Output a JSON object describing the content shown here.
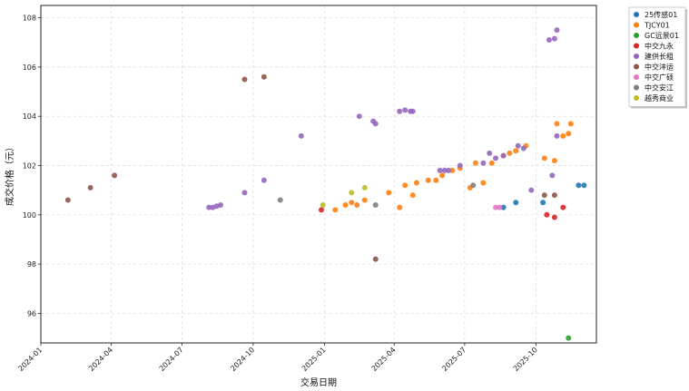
{
  "chart_data": {
    "type": "scatter",
    "title": "",
    "xlabel": "交易日期",
    "ylabel": "成交价格（元）",
    "x_axis_type": "date",
    "xlim": [
      "2024-01-01",
      "2025-12-18"
    ],
    "ylim": [
      94.8,
      108.5
    ],
    "x_ticks": [
      "2024-01",
      "2024-04",
      "2024-07",
      "2024-10",
      "2025-01",
      "2025-04",
      "2025-07",
      "2025-10"
    ],
    "y_ticks": [
      96,
      98,
      100,
      102,
      104,
      106,
      108
    ],
    "grid": true,
    "legend_position": "outside-top-right",
    "series": [
      {
        "name": "25传感01",
        "color": "#1f77b4",
        "points": [
          {
            "x": "2025-08-20",
            "y": 100.3
          },
          {
            "x": "2025-09-05",
            "y": 100.5
          },
          {
            "x": "2025-10-10",
            "y": 100.5
          },
          {
            "x": "2025-11-25",
            "y": 101.2
          },
          {
            "x": "2025-12-02",
            "y": 101.2
          }
        ]
      },
      {
        "name": "TJCY01",
        "color": "#ff7f0e",
        "points": [
          {
            "x": "2025-01-15",
            "y": 100.2
          },
          {
            "x": "2025-01-28",
            "y": 100.4
          },
          {
            "x": "2025-02-05",
            "y": 100.5
          },
          {
            "x": "2025-02-12",
            "y": 100.4
          },
          {
            "x": "2025-02-22",
            "y": 100.6
          },
          {
            "x": "2025-03-25",
            "y": 100.9
          },
          {
            "x": "2025-04-08",
            "y": 100.3
          },
          {
            "x": "2025-04-15",
            "y": 101.2
          },
          {
            "x": "2025-04-25",
            "y": 100.8
          },
          {
            "x": "2025-04-30",
            "y": 101.3
          },
          {
            "x": "2025-05-15",
            "y": 101.4
          },
          {
            "x": "2025-05-25",
            "y": 101.4
          },
          {
            "x": "2025-06-02",
            "y": 101.6
          },
          {
            "x": "2025-06-15",
            "y": 101.8
          },
          {
            "x": "2025-06-25",
            "y": 101.9
          },
          {
            "x": "2025-07-08",
            "y": 101.1
          },
          {
            "x": "2025-07-15",
            "y": 102.1
          },
          {
            "x": "2025-07-25",
            "y": 101.3
          },
          {
            "x": "2025-08-05",
            "y": 102.1
          },
          {
            "x": "2025-08-20",
            "y": 102.4
          },
          {
            "x": "2025-08-28",
            "y": 102.5
          },
          {
            "x": "2025-09-05",
            "y": 102.6
          },
          {
            "x": "2025-09-18",
            "y": 102.8
          },
          {
            "x": "2025-10-12",
            "y": 102.3
          },
          {
            "x": "2025-10-25",
            "y": 102.2
          },
          {
            "x": "2025-10-28",
            "y": 103.7
          },
          {
            "x": "2025-11-05",
            "y": 103.2
          },
          {
            "x": "2025-11-12",
            "y": 103.3
          },
          {
            "x": "2025-11-15",
            "y": 103.7
          }
        ]
      },
      {
        "name": "GC远景01",
        "color": "#2ca02c",
        "points": [
          {
            "x": "2025-11-12",
            "y": 95.0
          }
        ]
      },
      {
        "name": "中交九永",
        "color": "#d62728",
        "points": [
          {
            "x": "2024-12-28",
            "y": 100.2
          },
          {
            "x": "2025-10-15",
            "y": 100.0
          },
          {
            "x": "2025-10-25",
            "y": 99.9
          },
          {
            "x": "2025-11-05",
            "y": 100.3
          }
        ]
      },
      {
        "name": "建供长租",
        "color": "#9467bd",
        "points": [
          {
            "x": "2024-08-05",
            "y": 100.3
          },
          {
            "x": "2024-08-10",
            "y": 100.3
          },
          {
            "x": "2024-08-15",
            "y": 100.35
          },
          {
            "x": "2024-08-20",
            "y": 100.4
          },
          {
            "x": "2024-09-20",
            "y": 100.9
          },
          {
            "x": "2024-10-15",
            "y": 101.4
          },
          {
            "x": "2024-12-02",
            "y": 103.2
          },
          {
            "x": "2025-02-15",
            "y": 104.0
          },
          {
            "x": "2025-03-05",
            "y": 103.8
          },
          {
            "x": "2025-03-08",
            "y": 103.7
          },
          {
            "x": "2025-04-08",
            "y": 104.2
          },
          {
            "x": "2025-04-15",
            "y": 104.25
          },
          {
            "x": "2025-04-22",
            "y": 104.2
          },
          {
            "x": "2025-04-25",
            "y": 104.2
          },
          {
            "x": "2025-05-30",
            "y": 101.8
          },
          {
            "x": "2025-06-05",
            "y": 101.8
          },
          {
            "x": "2025-06-10",
            "y": 101.8
          },
          {
            "x": "2025-06-25",
            "y": 102.0
          },
          {
            "x": "2025-07-25",
            "y": 102.1
          },
          {
            "x": "2025-08-02",
            "y": 102.5
          },
          {
            "x": "2025-08-10",
            "y": 102.3
          },
          {
            "x": "2025-08-20",
            "y": 102.4
          },
          {
            "x": "2025-09-08",
            "y": 102.8
          },
          {
            "x": "2025-09-15",
            "y": 102.7
          },
          {
            "x": "2025-09-25",
            "y": 101.0
          },
          {
            "x": "2025-10-18",
            "y": 107.1
          },
          {
            "x": "2025-10-25",
            "y": 107.15
          },
          {
            "x": "2025-10-28",
            "y": 107.5
          },
          {
            "x": "2025-10-22",
            "y": 101.6
          },
          {
            "x": "2025-10-28",
            "y": 103.2
          }
        ]
      },
      {
        "name": "中交沣运",
        "color": "#8c564b",
        "points": [
          {
            "x": "2024-02-05",
            "y": 100.6
          },
          {
            "x": "2024-03-05",
            "y": 101.1
          },
          {
            "x": "2024-04-05",
            "y": 101.6
          },
          {
            "x": "2024-09-20",
            "y": 105.5
          },
          {
            "x": "2024-10-15",
            "y": 105.6
          },
          {
            "x": "2025-03-08",
            "y": 98.2
          },
          {
            "x": "2025-10-12",
            "y": 100.8
          },
          {
            "x": "2025-10-25",
            "y": 100.8
          }
        ]
      },
      {
        "name": "中交广硕",
        "color": "#e377c2",
        "points": [
          {
            "x": "2025-08-10",
            "y": 100.3
          },
          {
            "x": "2025-08-15",
            "y": 100.3
          }
        ]
      },
      {
        "name": "中交安江",
        "color": "#7f7f7f",
        "points": [
          {
            "x": "2024-11-05",
            "y": 100.6
          },
          {
            "x": "2025-03-08",
            "y": 100.4
          },
          {
            "x": "2025-07-12",
            "y": 101.2
          }
        ]
      },
      {
        "name": "越秀商业",
        "color": "#bcbd22",
        "points": [
          {
            "x": "2024-12-30",
            "y": 100.4
          },
          {
            "x": "2025-02-05",
            "y": 100.9
          },
          {
            "x": "2025-02-22",
            "y": 101.1
          }
        ]
      }
    ]
  }
}
